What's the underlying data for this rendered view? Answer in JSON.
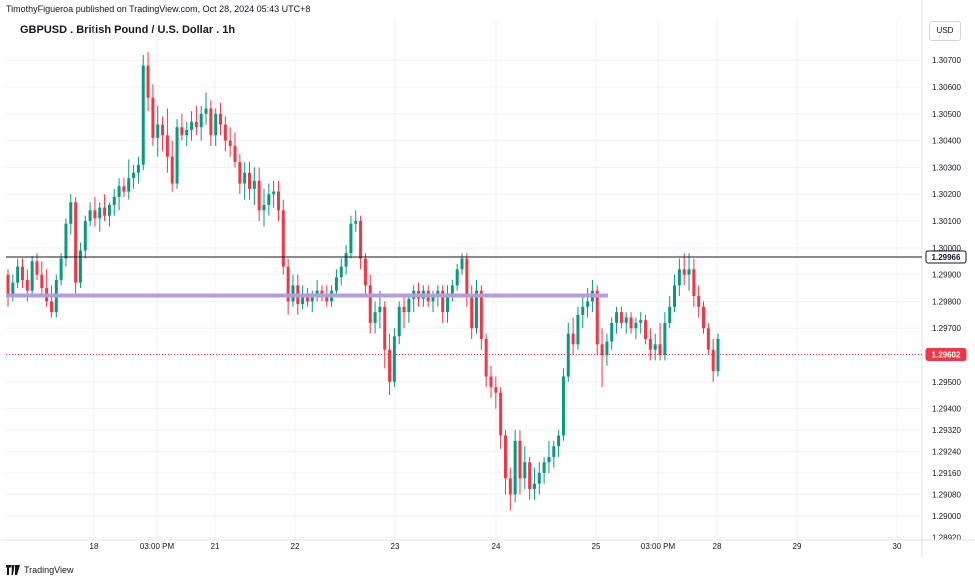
{
  "header": {
    "published_text": "TimothyFigueroa published on TradingView.com, Oct 28, 2024 05:43 UTC+8"
  },
  "footer": {
    "brand": "TradingView"
  },
  "chart_data": {
    "type": "candlestick",
    "title": "GBPUSD . British Pound / U.S. Dollar . 1h",
    "currency": "USD",
    "ylim": [
      1.2891,
      1.3085
    ],
    "y_ticks": [
      "1.30700",
      "1.30600",
      "1.30500",
      "1.30400",
      "1.30300",
      "1.30200",
      "1.30100",
      "1.30000",
      "1.29900",
      "1.29800",
      "1.29700",
      "1.29600",
      "1.29500",
      "1.29400",
      "1.29320",
      "1.29240",
      "1.29160",
      "1.29080",
      "1.29000",
      "1.28920"
    ],
    "x_ticks": [
      "18",
      "03:00 PM",
      "21",
      "22",
      "23",
      "24",
      "25",
      "03:00 PM",
      "28",
      "29",
      "30"
    ],
    "horizontal_lines": [
      {
        "price": 1.29966,
        "label": "1.29966",
        "color": "#131722",
        "style": "solid"
      },
      {
        "price": 1.29602,
        "label": "1.29602",
        "color": "#f23645",
        "style": "dotted",
        "badge": true
      }
    ],
    "zone_line": {
      "price": 1.29822,
      "color": "#b39ddb"
    },
    "colors": {
      "up": "#089981",
      "down": "#f23645",
      "grid": "#f0f3fa",
      "axis_text": "#131722"
    },
    "ohlc": [
      [
        1.299,
        1.2992,
        1.2978,
        1.2982
      ],
      [
        1.2982,
        1.299,
        1.298,
        1.2987
      ],
      [
        1.2987,
        1.2996,
        1.2985,
        1.2993
      ],
      [
        1.2993,
        1.2996,
        1.2985,
        1.2988
      ],
      [
        1.2988,
        1.2992,
        1.298,
        1.2984
      ],
      [
        1.2984,
        1.2997,
        1.2983,
        1.2995
      ],
      [
        1.2995,
        1.2998,
        1.2988,
        1.299
      ],
      [
        1.299,
        1.2995,
        1.2982,
        1.2985
      ],
      [
        1.2985,
        1.2992,
        1.2978,
        1.298
      ],
      [
        1.298,
        1.2986,
        1.2974,
        1.2976
      ],
      [
        1.2976,
        1.299,
        1.2974,
        1.2988
      ],
      [
        1.2988,
        1.2998,
        1.2986,
        1.2996
      ],
      [
        1.2996,
        1.3011,
        1.2993,
        1.3009
      ],
      [
        1.3009,
        1.302,
        1.3005,
        1.3017
      ],
      [
        1.3017,
        1.3019,
        1.2983,
        1.2987
      ],
      [
        1.2987,
        1.3002,
        1.2985,
        1.2999
      ],
      [
        1.2999,
        1.3012,
        1.2996,
        1.301
      ],
      [
        1.301,
        1.3017,
        1.3008,
        1.3014
      ],
      [
        1.3014,
        1.3019,
        1.3008,
        1.3011
      ],
      [
        1.3011,
        1.3017,
        1.3006,
        1.3015
      ],
      [
        1.3015,
        1.302,
        1.301,
        1.3012
      ],
      [
        1.3012,
        1.3017,
        1.3008,
        1.3016
      ],
      [
        1.3016,
        1.3022,
        1.3012,
        1.3019
      ],
      [
        1.3019,
        1.3026,
        1.3014,
        1.3023
      ],
      [
        1.3023,
        1.3026,
        1.3019,
        1.3021
      ],
      [
        1.3021,
        1.3033,
        1.3018,
        1.3026
      ],
      [
        1.3026,
        1.3031,
        1.3022,
        1.3028
      ],
      [
        1.3028,
        1.3034,
        1.3024,
        1.3031
      ],
      [
        1.3031,
        1.3072,
        1.3029,
        1.3068
      ],
      [
        1.3068,
        1.3073,
        1.3051,
        1.3056
      ],
      [
        1.3056,
        1.3061,
        1.3038,
        1.3041
      ],
      [
        1.3041,
        1.3053,
        1.3034,
        1.3046
      ],
      [
        1.3046,
        1.3049,
        1.3036,
        1.3042
      ],
      [
        1.3042,
        1.3052,
        1.3028,
        1.3034
      ],
      [
        1.3034,
        1.304,
        1.3021,
        1.3024
      ],
      [
        1.3024,
        1.3048,
        1.3022,
        1.3045
      ],
      [
        1.3045,
        1.305,
        1.304,
        1.3042
      ],
      [
        1.3042,
        1.3047,
        1.3038,
        1.3044
      ],
      [
        1.3044,
        1.3051,
        1.304,
        1.3047
      ],
      [
        1.3047,
        1.3053,
        1.3042,
        1.3045
      ],
      [
        1.3045,
        1.3053,
        1.304,
        1.305
      ],
      [
        1.305,
        1.3058,
        1.3046,
        1.3052
      ],
      [
        1.3052,
        1.3055,
        1.3038,
        1.3042
      ],
      [
        1.3042,
        1.3052,
        1.3038,
        1.305
      ],
      [
        1.305,
        1.3054,
        1.3042,
        1.3046
      ],
      [
        1.3046,
        1.3049,
        1.3036,
        1.304
      ],
      [
        1.304,
        1.3045,
        1.3034,
        1.3038
      ],
      [
        1.3038,
        1.3043,
        1.303,
        1.3032
      ],
      [
        1.3032,
        1.3035,
        1.302,
        1.3024
      ],
      [
        1.3024,
        1.3032,
        1.3018,
        1.3028
      ],
      [
        1.3028,
        1.3032,
        1.3018,
        1.3022
      ],
      [
        1.3022,
        1.303,
        1.3016,
        1.3025
      ],
      [
        1.3025,
        1.303,
        1.301,
        1.3014
      ],
      [
        1.3014,
        1.3022,
        1.3008,
        1.3016
      ],
      [
        1.3016,
        1.3024,
        1.3012,
        1.302
      ],
      [
        1.302,
        1.3025,
        1.3015,
        1.3021
      ],
      [
        1.3021,
        1.3025,
        1.301,
        1.3014
      ],
      [
        1.3014,
        1.3018,
        1.299,
        1.2993
      ],
      [
        1.2993,
        1.2996,
        1.2975,
        1.298
      ],
      [
        1.298,
        1.299,
        1.2978,
        1.2986
      ],
      [
        1.2986,
        1.299,
        1.2975,
        1.2979
      ],
      [
        1.2979,
        1.2986,
        1.2977,
        1.2983
      ],
      [
        1.2983,
        1.2985,
        1.2978,
        1.298
      ],
      [
        1.298,
        1.2984,
        1.2976,
        1.2982
      ],
      [
        1.2982,
        1.2988,
        1.298,
        1.2984
      ],
      [
        1.2984,
        1.2986,
        1.298,
        1.2982
      ],
      [
        1.2982,
        1.2986,
        1.2978,
        1.298
      ],
      [
        1.298,
        1.2986,
        1.2978,
        1.2984
      ],
      [
        1.2984,
        1.2992,
        1.2982,
        1.2989
      ],
      [
        1.2989,
        1.2996,
        1.2986,
        1.2993
      ],
      [
        1.2993,
        1.3001,
        1.299,
        1.2998
      ],
      [
        1.2998,
        1.3012,
        1.2996,
        1.3009
      ],
      [
        1.3009,
        1.3014,
        1.3006,
        1.301
      ],
      [
        1.301,
        1.3012,
        1.2992,
        1.2996
      ],
      [
        1.2996,
        1.2998,
        1.2982,
        1.2986
      ],
      [
        1.2986,
        1.299,
        1.2968,
        1.2972
      ],
      [
        1.2972,
        1.298,
        1.2968,
        1.2976
      ],
      [
        1.2976,
        1.2984,
        1.297,
        1.2978
      ],
      [
        1.2978,
        1.298,
        1.2955,
        1.2962
      ],
      [
        1.2962,
        1.2968,
        1.2945,
        1.295
      ],
      [
        1.295,
        1.297,
        1.2948,
        1.2967
      ],
      [
        1.2967,
        1.298,
        1.2964,
        1.2978
      ],
      [
        1.2978,
        1.2982,
        1.297,
        1.2976
      ],
      [
        1.2976,
        1.2983,
        1.2972,
        1.2981
      ],
      [
        1.2981,
        1.2986,
        1.2976,
        1.2984
      ],
      [
        1.2984,
        1.2987,
        1.2978,
        1.2981
      ],
      [
        1.2981,
        1.2986,
        1.2978,
        1.2984
      ],
      [
        1.2984,
        1.2986,
        1.2978,
        1.298
      ],
      [
        1.298,
        1.2984,
        1.2976,
        1.2982
      ],
      [
        1.2982,
        1.2986,
        1.2978,
        1.2984
      ],
      [
        1.2984,
        1.2986,
        1.2972,
        1.2976
      ],
      [
        1.2976,
        1.2986,
        1.2972,
        1.2983
      ],
      [
        1.2983,
        1.2988,
        1.298,
        1.2986
      ],
      [
        1.2986,
        1.2994,
        1.2984,
        1.2992
      ],
      [
        1.2992,
        1.2998,
        1.299,
        1.2996
      ],
      [
        1.2996,
        1.2998,
        1.2978,
        1.2982
      ],
      [
        1.2982,
        1.2986,
        1.2966,
        1.297
      ],
      [
        1.297,
        1.2988,
        1.2968,
        1.2984
      ],
      [
        1.2984,
        1.2986,
        1.2962,
        1.2966
      ],
      [
        1.2966,
        1.2968,
        1.2948,
        1.2952
      ],
      [
        1.2952,
        1.2956,
        1.2944,
        1.2948
      ],
      [
        1.2948,
        1.2952,
        1.294,
        1.2946
      ],
      [
        1.2946,
        1.2948,
        1.2925,
        1.293
      ],
      [
        1.293,
        1.2932,
        1.2908,
        1.2914
      ],
      [
        1.2914,
        1.2918,
        1.2902,
        1.2908
      ],
      [
        1.2908,
        1.2932,
        1.2905,
        1.2928
      ],
      [
        1.2928,
        1.2932,
        1.2908,
        1.2914
      ],
      [
        1.2914,
        1.2926,
        1.291,
        1.292
      ],
      [
        1.292,
        1.2922,
        1.2906,
        1.291
      ],
      [
        1.291,
        1.2918,
        1.2906,
        1.2912
      ],
      [
        1.2912,
        1.292,
        1.2908,
        1.2916
      ],
      [
        1.2916,
        1.2922,
        1.2912,
        1.292
      ],
      [
        1.292,
        1.2928,
        1.2916,
        1.2922
      ],
      [
        1.2922,
        1.2928,
        1.2918,
        1.2926
      ],
      [
        1.2926,
        1.2932,
        1.2922,
        1.293
      ],
      [
        1.293,
        1.2955,
        1.2928,
        1.2952
      ],
      [
        1.2952,
        1.2972,
        1.295,
        1.2968
      ],
      [
        1.2968,
        1.2974,
        1.296,
        1.2964
      ],
      [
        1.2964,
        1.2978,
        1.2962,
        1.2975
      ],
      [
        1.2975,
        1.2982,
        1.297,
        1.2978
      ],
      [
        1.2978,
        1.2985,
        1.2974,
        1.298
      ],
      [
        1.298,
        1.2988,
        1.2976,
        1.2984
      ],
      [
        1.2984,
        1.2986,
        1.296,
        1.2964
      ],
      [
        1.2964,
        1.297,
        1.2948,
        1.296
      ],
      [
        1.296,
        1.2968,
        1.2956,
        1.2965
      ],
      [
        1.2965,
        1.2974,
        1.2962,
        1.2972
      ],
      [
        1.2972,
        1.2978,
        1.2968,
        1.2976
      ],
      [
        1.2976,
        1.2978,
        1.297,
        1.2972
      ],
      [
        1.2972,
        1.2976,
        1.2968,
        1.2974
      ],
      [
        1.2974,
        1.2976,
        1.2968,
        1.297
      ],
      [
        1.297,
        1.2974,
        1.2966,
        1.2972
      ],
      [
        1.2972,
        1.2976,
        1.2968,
        1.2973
      ],
      [
        1.2973,
        1.2975,
        1.2964,
        1.2966
      ],
      [
        1.2966,
        1.297,
        1.2958,
        1.2962
      ],
      [
        1.2962,
        1.2968,
        1.2958,
        1.2964
      ],
      [
        1.2964,
        1.2972,
        1.2958,
        1.296
      ],
      [
        1.296,
        1.2976,
        1.2958,
        1.2972
      ],
      [
        1.2972,
        1.2982,
        1.297,
        1.2978
      ],
      [
        1.2978,
        1.299,
        1.2976,
        1.2986
      ],
      [
        1.2986,
        1.2996,
        1.2982,
        1.2992
      ],
      [
        1.2992,
        1.2998,
        1.2986,
        1.299
      ],
      [
        1.299,
        1.2998,
        1.2984,
        1.2992
      ],
      [
        1.2992,
        1.2996,
        1.2978,
        1.2982
      ],
      [
        1.2982,
        1.2986,
        1.2974,
        1.2978
      ],
      [
        1.2978,
        1.298,
        1.2968,
        1.297
      ],
      [
        1.297,
        1.2972,
        1.296,
        1.2962
      ],
      [
        1.2962,
        1.2966,
        1.295,
        1.2954
      ],
      [
        1.2954,
        1.2968,
        1.2952,
        1.2966
      ]
    ]
  }
}
